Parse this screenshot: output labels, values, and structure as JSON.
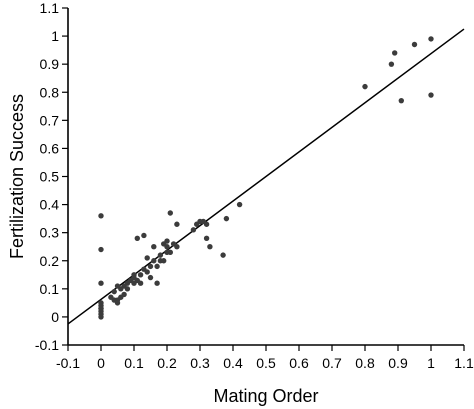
{
  "chart_data": {
    "type": "scatter",
    "xlabel": "Mating Order",
    "ylabel": "Fertilization Success",
    "xlim": [
      -0.1,
      1.1
    ],
    "ylim": [
      -0.1,
      1.1
    ],
    "x_ticks": [
      "-0.1",
      "0",
      "0.1",
      "0.2",
      "0.3",
      "0.4",
      "0.5",
      "0.6",
      "0.7",
      "0.8",
      "0.9",
      "1",
      "1.1"
    ],
    "y_ticks": [
      "-0.1",
      "0",
      "0.1",
      "0.2",
      "0.3",
      "0.4",
      "0.5",
      "0.6",
      "0.7",
      "0.8",
      "0.9",
      "1",
      "1.1"
    ],
    "grid": false,
    "point_color": "#3c3c3c",
    "points": [
      [
        0.0,
        0.36
      ],
      [
        0.0,
        0.24
      ],
      [
        0.0,
        0.12
      ],
      [
        0.0,
        0.05
      ],
      [
        0.0,
        0.04
      ],
      [
        0.0,
        0.03
      ],
      [
        0.0,
        0.02
      ],
      [
        0.0,
        0.01
      ],
      [
        0.0,
        0.0
      ],
      [
        0.0,
        0.03
      ],
      [
        0.03,
        0.07
      ],
      [
        0.04,
        0.06
      ],
      [
        0.04,
        0.09
      ],
      [
        0.05,
        0.11
      ],
      [
        0.05,
        0.06
      ],
      [
        0.05,
        0.05
      ],
      [
        0.06,
        0.1
      ],
      [
        0.06,
        0.07
      ],
      [
        0.07,
        0.11
      ],
      [
        0.07,
        0.08
      ],
      [
        0.08,
        0.12
      ],
      [
        0.08,
        0.1
      ],
      [
        0.09,
        0.13
      ],
      [
        0.1,
        0.15
      ],
      [
        0.1,
        0.12
      ],
      [
        0.1,
        0.14
      ],
      [
        0.11,
        0.13
      ],
      [
        0.11,
        0.28
      ],
      [
        0.12,
        0.15
      ],
      [
        0.12,
        0.12
      ],
      [
        0.13,
        0.29
      ],
      [
        0.13,
        0.17
      ],
      [
        0.14,
        0.16
      ],
      [
        0.14,
        0.21
      ],
      [
        0.15,
        0.18
      ],
      [
        0.15,
        0.14
      ],
      [
        0.16,
        0.2
      ],
      [
        0.16,
        0.25
      ],
      [
        0.17,
        0.18
      ],
      [
        0.17,
        0.12
      ],
      [
        0.18,
        0.22
      ],
      [
        0.18,
        0.2
      ],
      [
        0.19,
        0.26
      ],
      [
        0.19,
        0.2
      ],
      [
        0.2,
        0.23
      ],
      [
        0.2,
        0.25
      ],
      [
        0.2,
        0.27
      ],
      [
        0.21,
        0.23
      ],
      [
        0.21,
        0.37
      ],
      [
        0.22,
        0.26
      ],
      [
        0.23,
        0.25
      ],
      [
        0.23,
        0.33
      ],
      [
        0.28,
        0.31
      ],
      [
        0.29,
        0.33
      ],
      [
        0.3,
        0.34
      ],
      [
        0.31,
        0.34
      ],
      [
        0.32,
        0.33
      ],
      [
        0.32,
        0.28
      ],
      [
        0.33,
        0.25
      ],
      [
        0.37,
        0.22
      ],
      [
        0.38,
        0.35
      ],
      [
        0.42,
        0.4
      ],
      [
        0.8,
        0.82
      ],
      [
        0.88,
        0.9
      ],
      [
        0.89,
        0.94
      ],
      [
        0.91,
        0.77
      ],
      [
        0.95,
        0.97
      ],
      [
        1.0,
        0.99
      ],
      [
        1.0,
        0.79
      ]
    ],
    "fit_line": {
      "x": [
        -0.1,
        1.1
      ],
      "y": [
        -0.025,
        1.025
      ]
    }
  }
}
